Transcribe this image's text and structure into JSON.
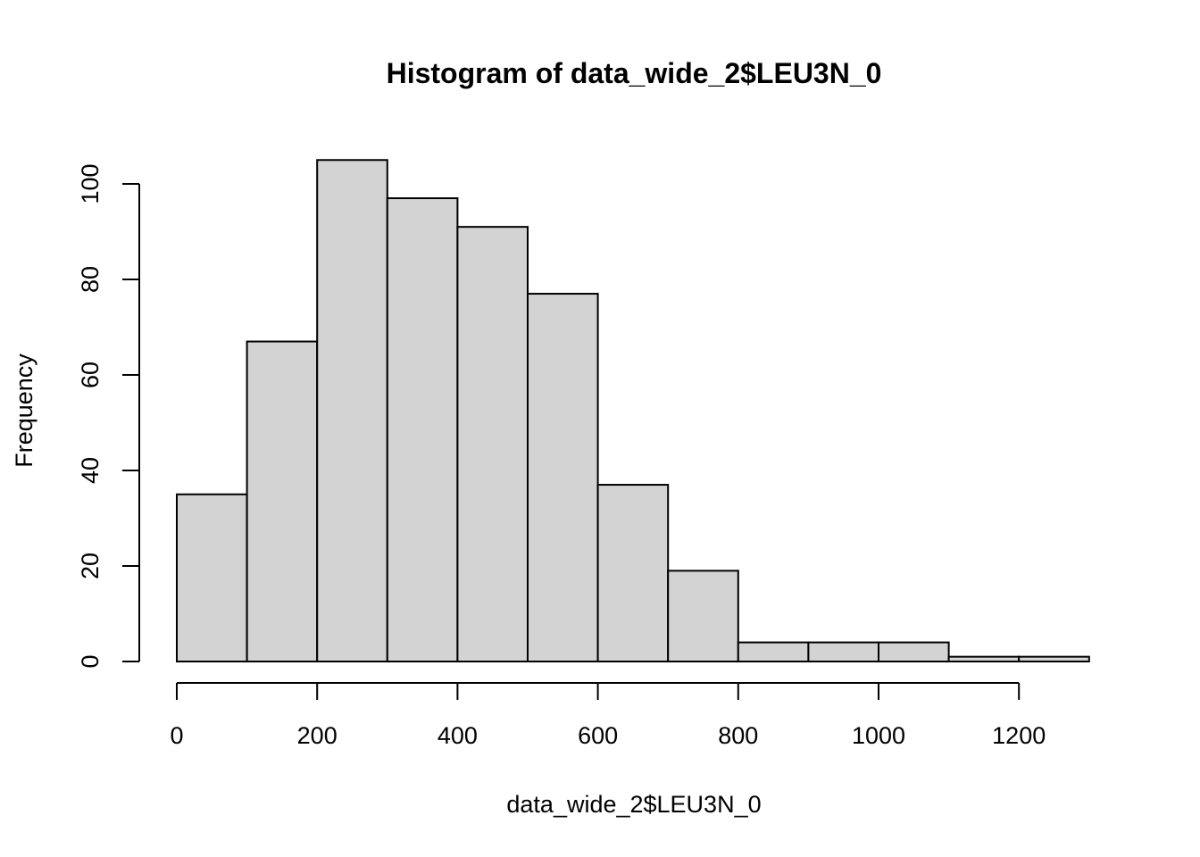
{
  "chart_data": {
    "type": "bar",
    "title": "Histogram of data_wide_2$LEU3N_0",
    "xlabel": "data_wide_2$LEU3N_0",
    "ylabel": "Frequency",
    "bin_edges": [
      0,
      100,
      200,
      300,
      400,
      500,
      600,
      700,
      800,
      900,
      1000,
      1100,
      1200,
      1300
    ],
    "values": [
      35,
      67,
      105,
      97,
      91,
      77,
      37,
      19,
      4,
      4,
      4,
      1,
      1
    ],
    "xlim": [
      0,
      1300
    ],
    "ylim": [
      0,
      105
    ],
    "x_ticks": [
      0,
      200,
      400,
      600,
      800,
      1000,
      1200
    ],
    "x_tick_labels": [
      "0",
      "200",
      "400",
      "600",
      "800",
      "1000",
      "1200"
    ],
    "y_ticks": [
      0,
      20,
      40,
      60,
      80,
      100
    ],
    "y_tick_labels": [
      "0",
      "20",
      "40",
      "60",
      "80",
      "100"
    ],
    "grid": false,
    "legend": "none",
    "colors": {
      "bar_fill": "#d3d3d3",
      "bar_stroke": "#000000"
    }
  }
}
